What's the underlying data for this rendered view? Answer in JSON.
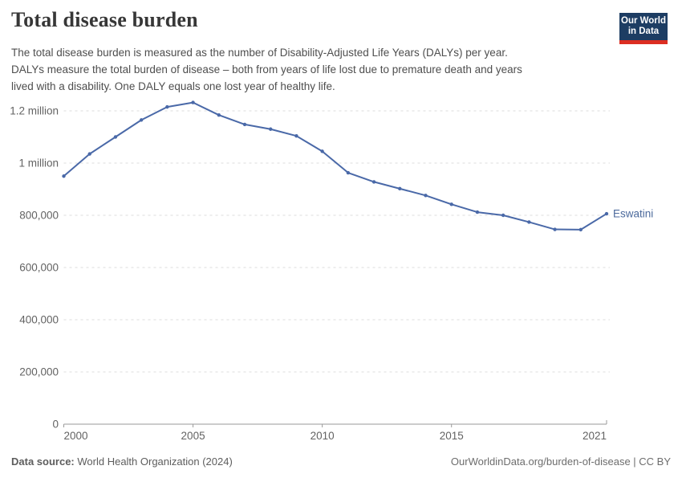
{
  "header": {
    "title": "Total disease burden",
    "subtitle_lines": [
      "The total disease burden is measured as the number of Disability-Adjusted Life Years (DALYs) per year.",
      "DALYs measure the total burden of disease – both from years of life lost due to premature death and years",
      "lived with a disability. One DALY equals one lost year of healthy life."
    ],
    "logo_line1": "Our World",
    "logo_line2": "in Data",
    "logo_colors": {
      "background": "#1d3d63",
      "stripe": "#dc2e22"
    }
  },
  "footer": {
    "source_label": "Data source:",
    "source_value": "World Health Organization (2024)",
    "rights": "OurWorldinData.org/burden-of-disease | CC BY"
  },
  "chart_data": {
    "type": "line",
    "title": "Total disease burden",
    "ylabel": "Disability-Adjusted Life Years (DALYs) per year",
    "xlim": [
      2000,
      2021
    ],
    "ylim": [
      0,
      1200000
    ],
    "grid": true,
    "legend_position": "end-of-line-label",
    "x": [
      2000,
      2001,
      2002,
      2003,
      2004,
      2005,
      2006,
      2007,
      2008,
      2009,
      2010,
      2011,
      2012,
      2013,
      2014,
      2015,
      2016,
      2017,
      2018,
      2019,
      2020,
      2021
    ],
    "series": [
      {
        "name": "Eswatini",
        "values": [
          950000,
          1035000,
          1100000,
          1165000,
          1215000,
          1232000,
          1184000,
          1148000,
          1130000,
          1104000,
          1045000,
          963000,
          928000,
          902000,
          876000,
          842000,
          812000,
          800000,
          774000,
          746000,
          745000,
          806000
        ]
      }
    ],
    "y_ticks": [
      {
        "value": 0,
        "label": "0"
      },
      {
        "value": 200000,
        "label": "200,000"
      },
      {
        "value": 400000,
        "label": "400,000"
      },
      {
        "value": 600000,
        "label": "600,000"
      },
      {
        "value": 800000,
        "label": "800,000"
      },
      {
        "value": 1000000,
        "label": "1 million"
      },
      {
        "value": 1200000,
        "label": "1.2 million"
      }
    ],
    "x_ticks": [
      {
        "value": 2000,
        "label": "2000"
      },
      {
        "value": 2005,
        "label": "2005"
      },
      {
        "value": 2010,
        "label": "2010"
      },
      {
        "value": 2015,
        "label": "2015"
      },
      {
        "value": 2021,
        "label": "2021"
      }
    ],
    "colors": {
      "line": "#4a69a8",
      "entity_label": "#4c6a9c",
      "gridline": "#dcdcdc",
      "axis": "#9a9a9a",
      "tick_text": "#636363"
    }
  }
}
